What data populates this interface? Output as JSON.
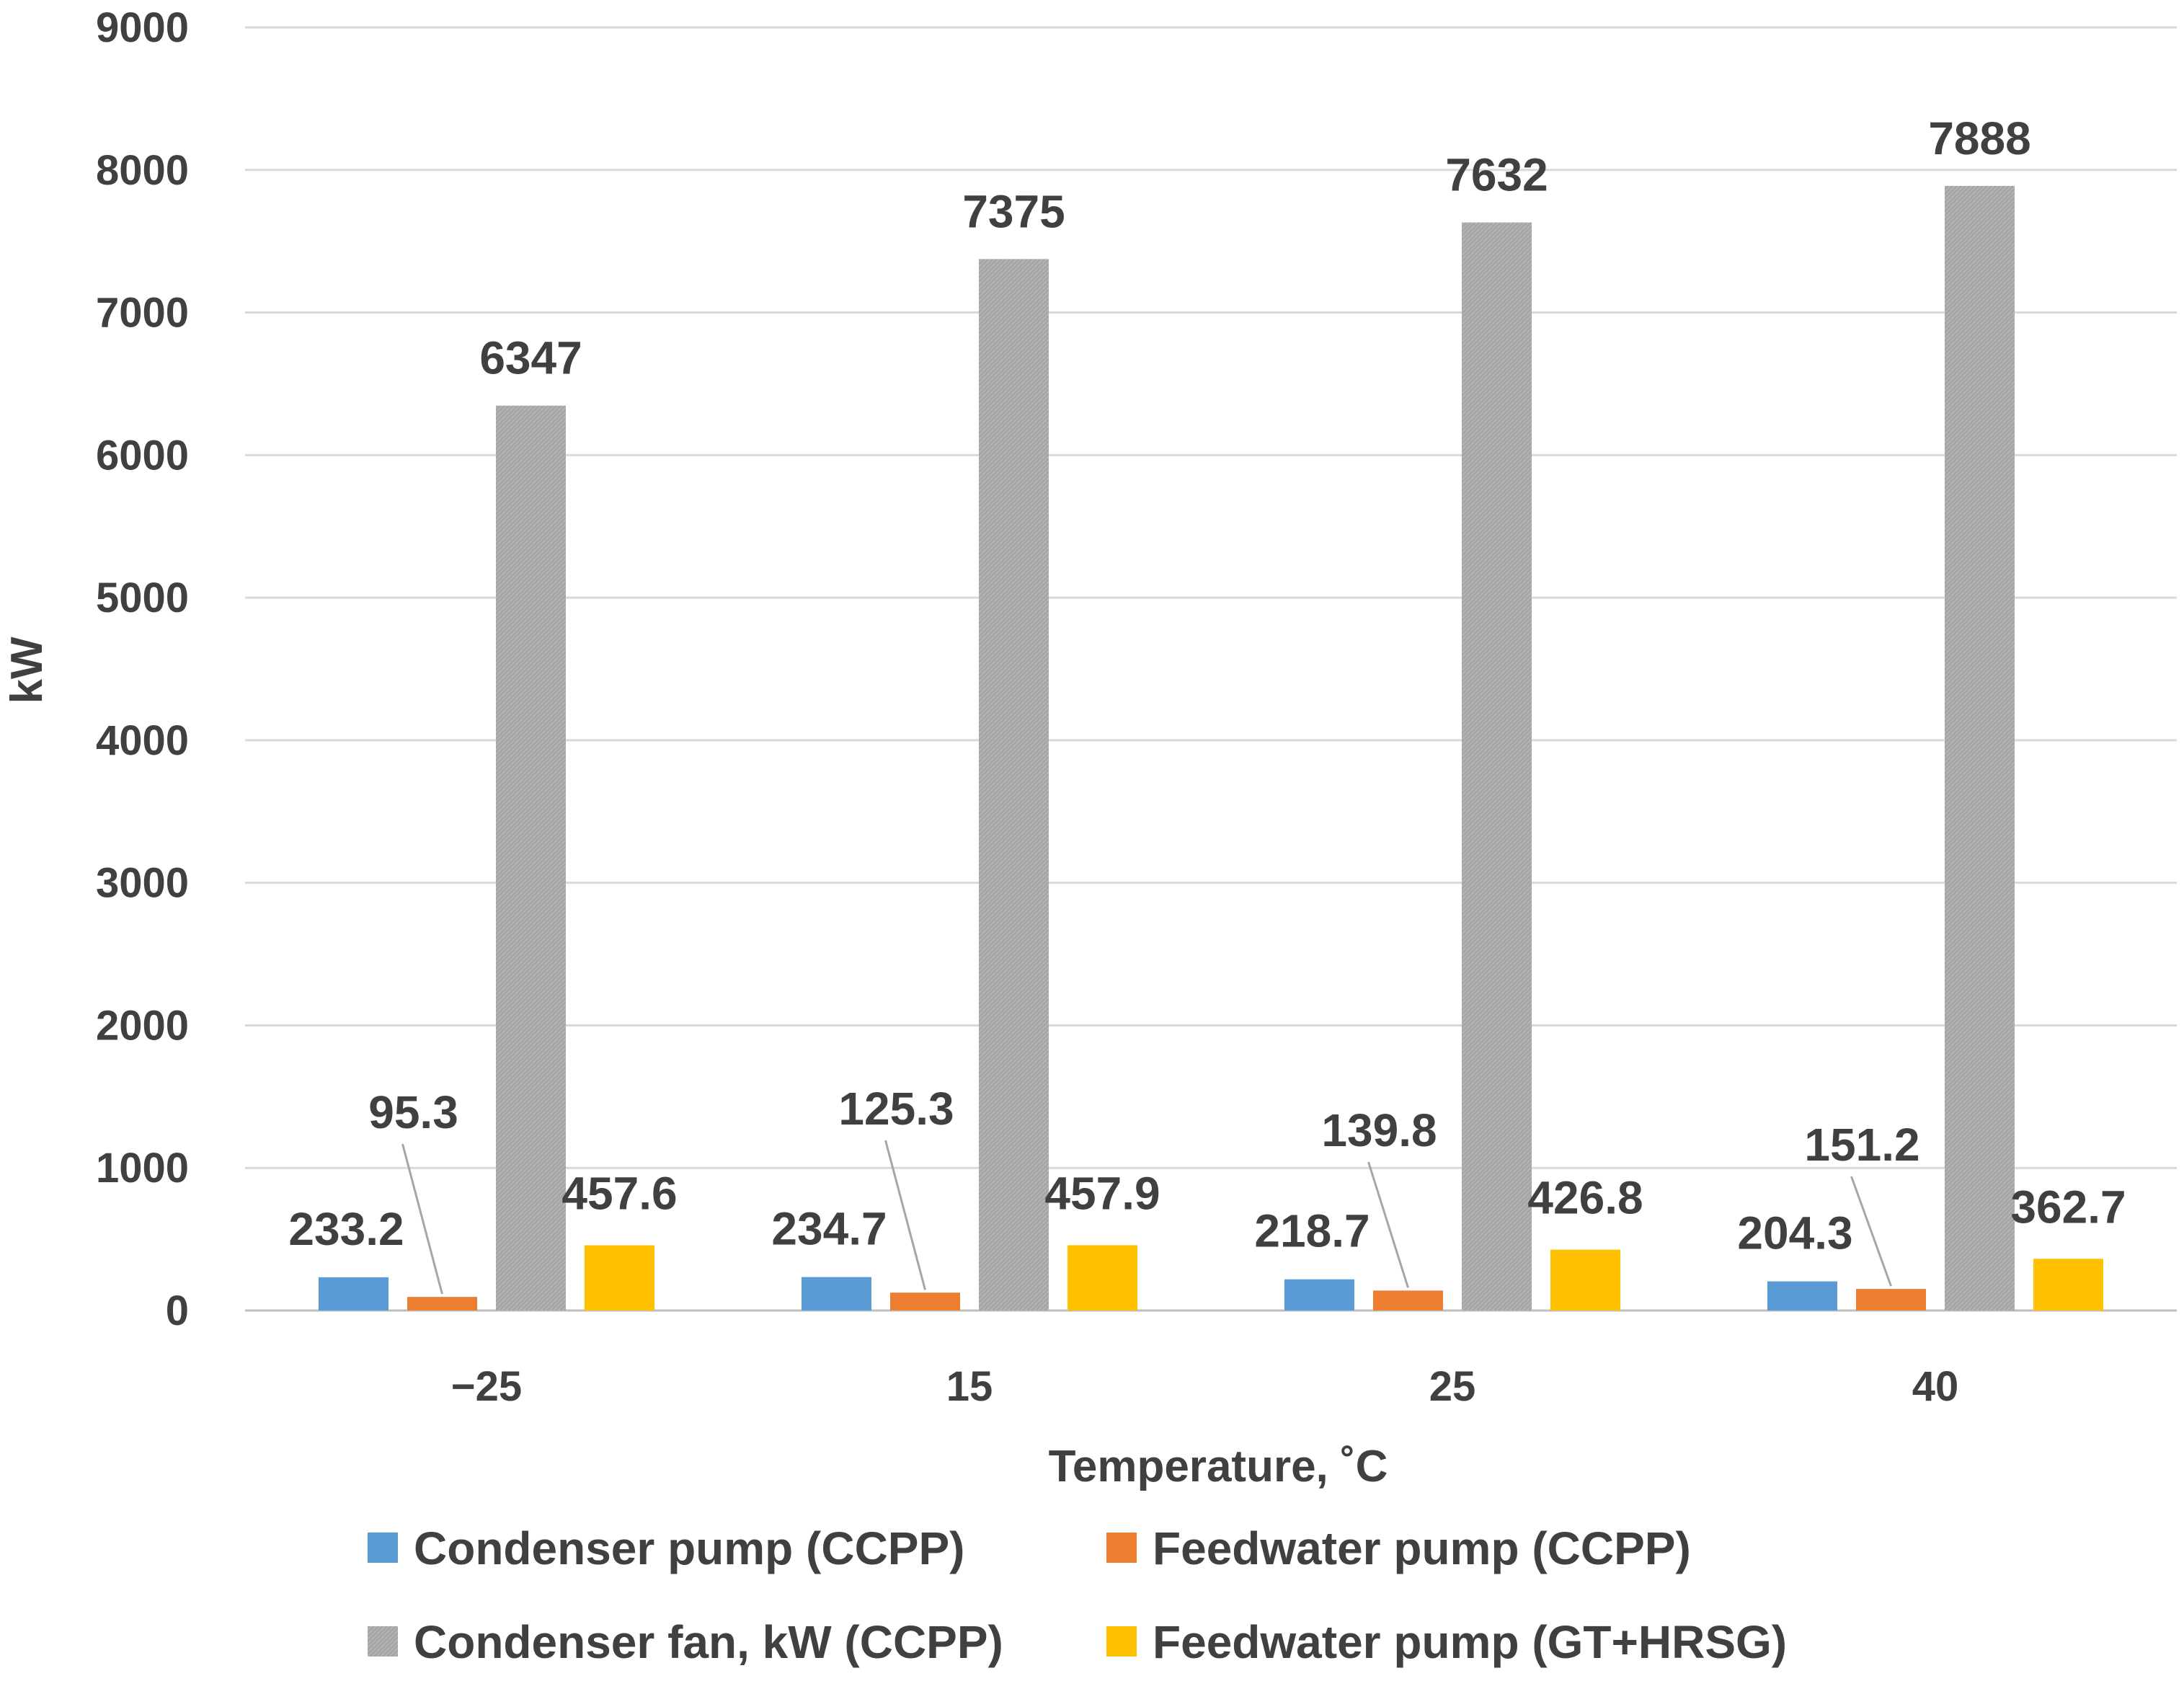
{
  "chart_data": {
    "type": "bar",
    "title": "",
    "xlabel": "Temperature, ˚C",
    "ylabel": "kW",
    "categories": [
      "−25",
      "15",
      "25",
      "40"
    ],
    "ylim": [
      0,
      9000
    ],
    "yticks": [
      0,
      1000,
      2000,
      3000,
      4000,
      5000,
      6000,
      7000,
      8000,
      9000
    ],
    "grid": true,
    "legend_position": "bottom",
    "series": [
      {
        "name": "Condenser pump (CCPP)",
        "color": "#5b9bd5",
        "values": [
          233.2,
          234.7,
          218.7,
          204.3
        ],
        "labels": [
          "233.2",
          "234.7",
          "218.7",
          "204.3"
        ]
      },
      {
        "name": "Feedwater pump (CCPP)",
        "color": "#ed7d31",
        "values": [
          95.3,
          125.3,
          139.8,
          151.2
        ],
        "labels": [
          "95.3",
          "125.3",
          "139.8",
          "151.2"
        ]
      },
      {
        "name": "Condenser fan, kW (CCPP)",
        "color": "#a5a5a5",
        "values": [
          6347,
          7375,
          7632,
          7888
        ],
        "labels": [
          "6347",
          "7375",
          "7632",
          "7888"
        ]
      },
      {
        "name": "Feedwater pump (GT+HRSG)",
        "color": "#ffc000",
        "values": [
          457.6,
          457.9,
          426.8,
          362.7
        ],
        "labels": [
          "457.6",
          "457.9",
          "426.8",
          "362.7"
        ]
      }
    ]
  }
}
